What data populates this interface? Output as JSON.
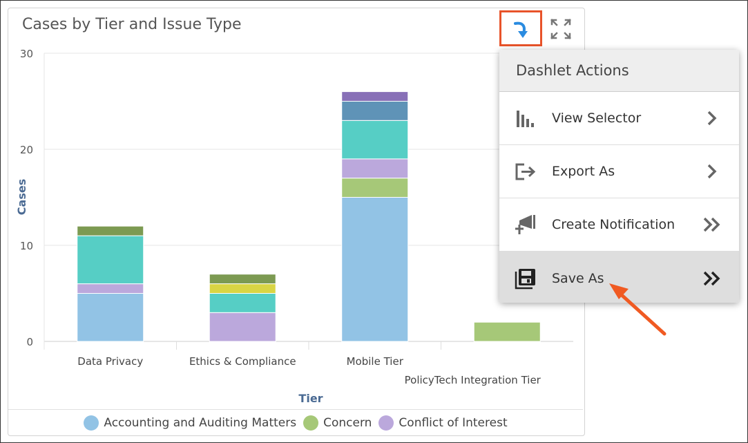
{
  "dashlet": {
    "title": "Cases by Tier and Issue Type"
  },
  "icons": {
    "refresh": "refresh-arrow-icon",
    "expand": "expand-icon",
    "view_selector": "bar-chart-icon",
    "export": "export-icon",
    "notification": "megaphone-plus-icon",
    "save": "floppy-disk-icon",
    "chevron": "chevron-right-icon",
    "double_chevron": "double-chevron-right-icon"
  },
  "menu": {
    "title": "Dashlet Actions",
    "items": [
      {
        "label": "View Selector",
        "arrow": "single"
      },
      {
        "label": "Export As",
        "arrow": "single"
      },
      {
        "label": "Create Notification",
        "arrow": "double"
      },
      {
        "label": "Save As",
        "arrow": "double",
        "active": true
      }
    ]
  },
  "chart_data": {
    "type": "bar",
    "stacked": true,
    "xlabel": "Tier",
    "ylabel": "Cases",
    "ylim": [
      0,
      30
    ],
    "yticks": [
      0,
      10,
      20,
      30
    ],
    "grid": true,
    "legend_position": "bottom",
    "categories": [
      "Data Privacy",
      "Ethics & Compliance",
      "Mobile Tier",
      "PolicyTech Integration Tier"
    ],
    "series": [
      {
        "name": "Accounting and Auditing Matters",
        "color": "#92c3e5",
        "values": [
          5,
          0,
          15,
          0
        ]
      },
      {
        "name": "Concern",
        "color": "#a6c878",
        "values": [
          0,
          0,
          2,
          2
        ]
      },
      {
        "name": "Conflict of Interest",
        "color": "#bba8dc",
        "values": [
          1,
          3,
          2,
          0
        ]
      },
      {
        "color": "#56cec5",
        "values": [
          5,
          2,
          4,
          0
        ]
      },
      {
        "color": "#d9d544",
        "values": [
          0,
          1,
          0,
          0
        ]
      },
      {
        "color": "#7c9a52",
        "values": [
          1,
          1,
          0,
          0
        ]
      },
      {
        "color": "#5f93b7",
        "values": [
          0,
          0,
          2,
          0
        ]
      },
      {
        "color": "#8870b7",
        "values": [
          0,
          0,
          1,
          0
        ]
      }
    ]
  }
}
